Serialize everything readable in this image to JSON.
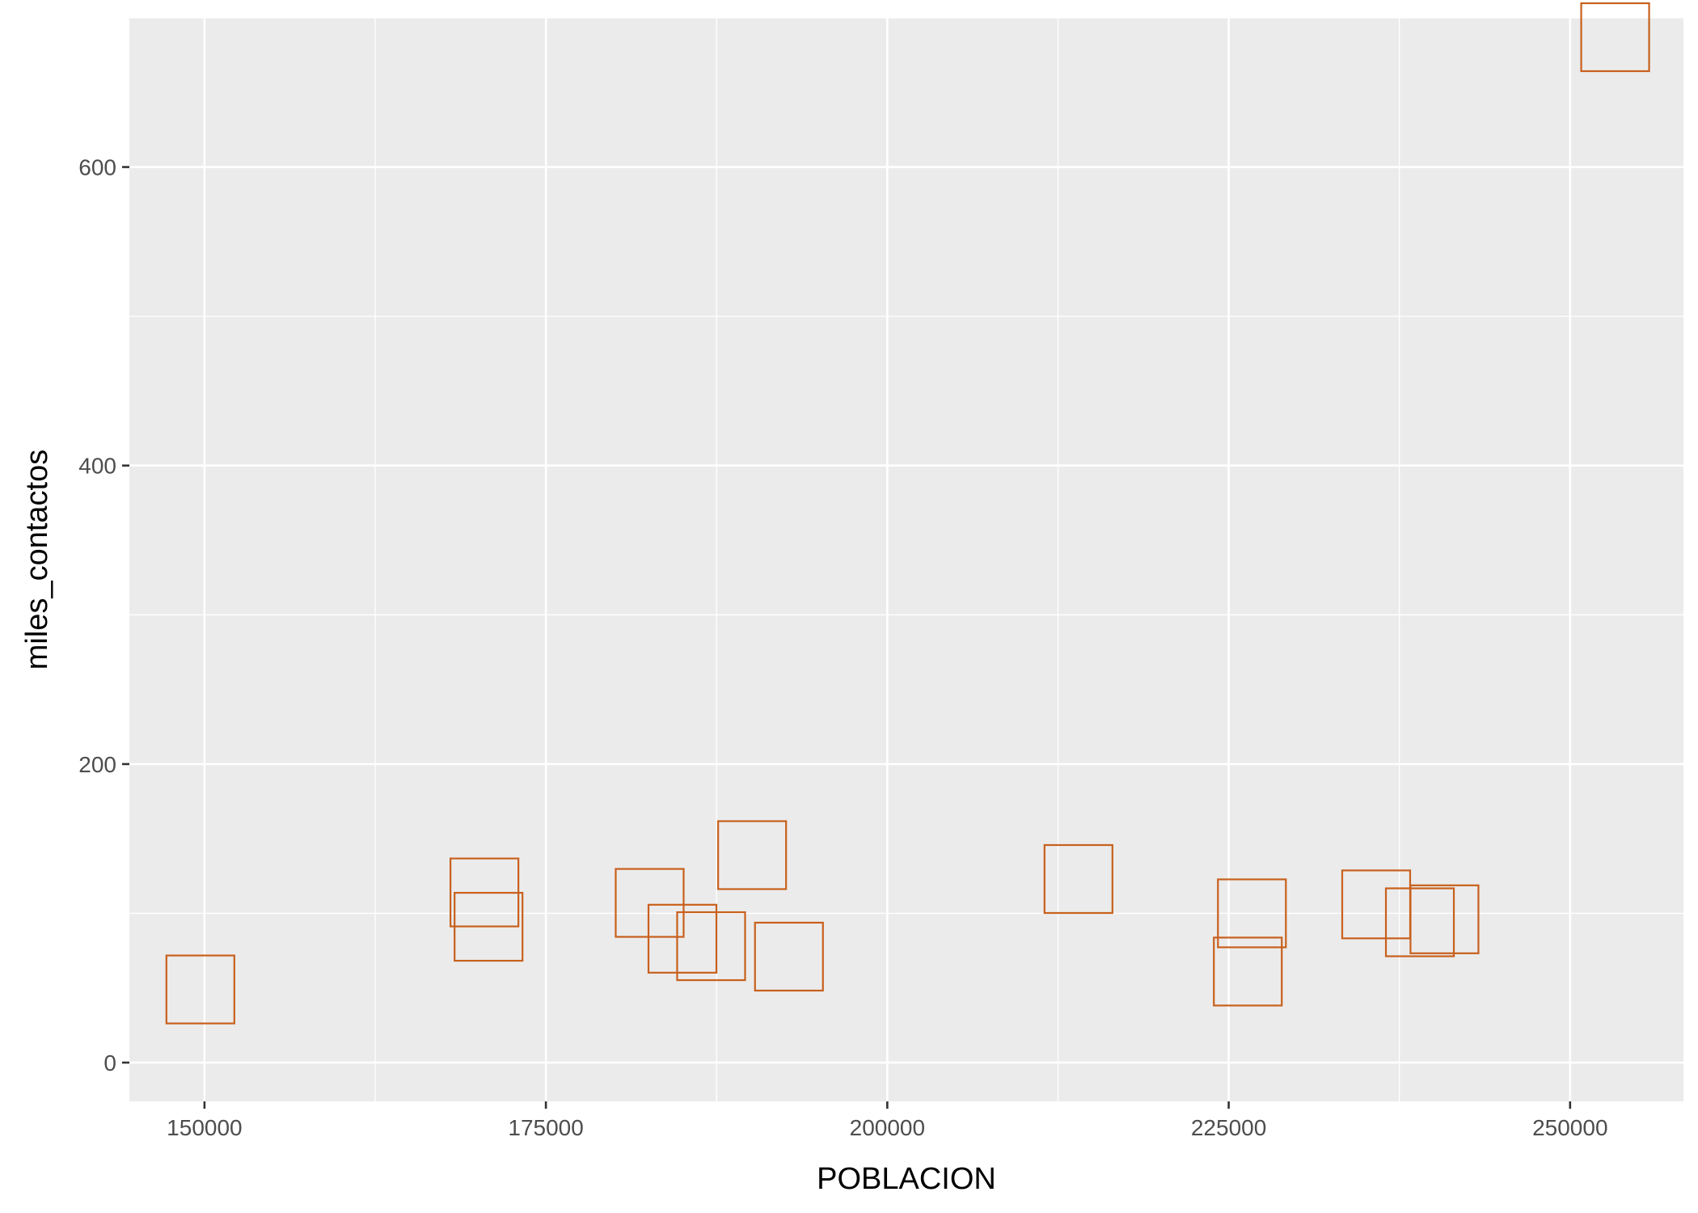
{
  "chart_data": {
    "type": "scatter",
    "title": "",
    "xlabel": "POBLACION",
    "ylabel": "miles_contactos",
    "xlim": [
      144500,
      258300
    ],
    "ylim": [
      -26,
      700
    ],
    "x_ticks": [
      150000,
      175000,
      200000,
      225000,
      250000
    ],
    "x_tick_labels": [
      "150000",
      "175000",
      "200000",
      "225000",
      "250000"
    ],
    "x_minor_ticks": [
      162500,
      187500,
      212500,
      237500
    ],
    "y_ticks": [
      0,
      200,
      400,
      600
    ],
    "y_tick_labels": [
      "0",
      "200",
      "400",
      "600"
    ],
    "y_minor_ticks": [
      100,
      300,
      500,
      700
    ],
    "grid": true,
    "marker": "open-square",
    "point_color": "#C8601C",
    "panel_background": "#EBEBEB",
    "points": [
      {
        "x": 149700,
        "y": 49
      },
      {
        "x": 170500,
        "y": 114
      },
      {
        "x": 170800,
        "y": 91
      },
      {
        "x": 182600,
        "y": 107
      },
      {
        "x": 185000,
        "y": 83
      },
      {
        "x": 187100,
        "y": 78
      },
      {
        "x": 190100,
        "y": 139
      },
      {
        "x": 192800,
        "y": 71
      },
      {
        "x": 214000,
        "y": 123
      },
      {
        "x": 226700,
        "y": 100
      },
      {
        "x": 226400,
        "y": 61
      },
      {
        "x": 235800,
        "y": 106
      },
      {
        "x": 239000,
        "y": 94
      },
      {
        "x": 240800,
        "y": 96
      },
      {
        "x": 253300,
        "y": 687
      }
    ]
  }
}
